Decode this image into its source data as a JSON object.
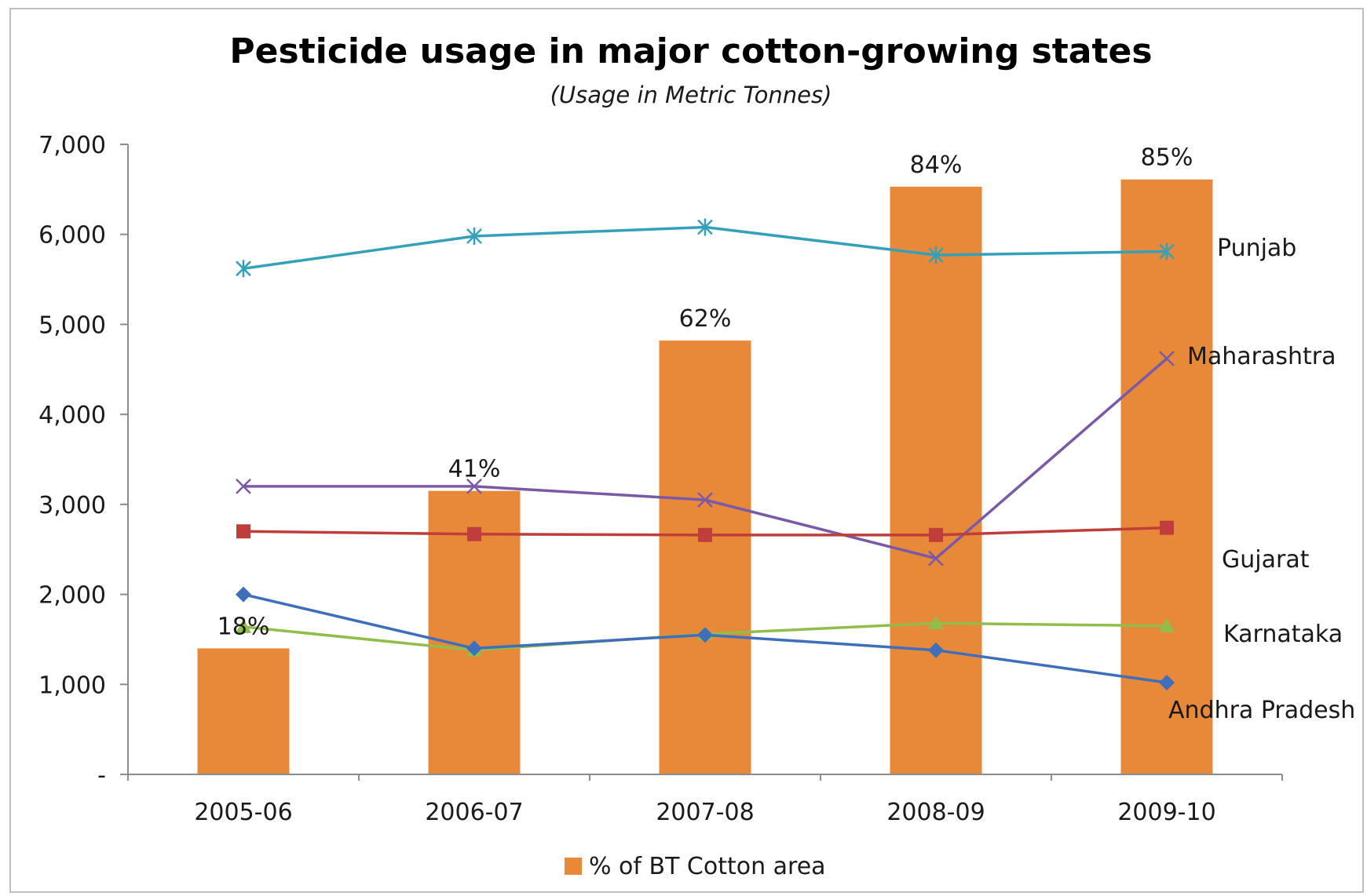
{
  "chart_data": {
    "type": "bar",
    "title": "Pesticide usage in major cotton-growing states",
    "subtitle": "(Usage in Metric Tonnes)",
    "categories": [
      "2005-06",
      "2006-07",
      "2007-08",
      "2008-09",
      "2009-10"
    ],
    "ylim": [
      0,
      7000
    ],
    "yticks": [
      {
        "value": 0,
        "label": "-"
      },
      {
        "value": 1000,
        "label": "1,000"
      },
      {
        "value": 2000,
        "label": "2,000"
      },
      {
        "value": 3000,
        "label": "3,000"
      },
      {
        "value": 4000,
        "label": "4,000"
      },
      {
        "value": 5000,
        "label": "5,000"
      },
      {
        "value": 6000,
        "label": "6,000"
      },
      {
        "value": 7000,
        "label": "7,000"
      }
    ],
    "grid": false,
    "legend": {
      "position": "bottom",
      "entries": [
        {
          "name": "% of BT Cotton area",
          "color": "#e8893a",
          "type": "bar"
        }
      ]
    },
    "bars": {
      "name": "% of BT Cotton area",
      "color": "#e8893a",
      "values": [
        1400,
        3150,
        4820,
        6530,
        6610
      ],
      "data_labels": [
        "18%",
        "41%",
        "62%",
        "84%",
        "85%"
      ]
    },
    "series": [
      {
        "name": "Punjab",
        "color": "#35a1b8",
        "marker": "star",
        "values": [
          5620,
          5980,
          6080,
          5770,
          5810
        ]
      },
      {
        "name": "Maharashtra",
        "color": "#7a5aa6",
        "marker": "x",
        "values": [
          3200,
          3200,
          3050,
          2400,
          4620
        ]
      },
      {
        "name": "Gujarat",
        "color": "#bf3d3a",
        "marker": "square",
        "values": [
          2700,
          2670,
          2660,
          2660,
          2740
        ]
      },
      {
        "name": "Karnataka",
        "color": "#93bd4a",
        "marker": "triangle",
        "values": [
          1640,
          1380,
          1560,
          1680,
          1650
        ]
      },
      {
        "name": "Andhra Pradesh",
        "color": "#3f6fba",
        "marker": "diamond",
        "values": [
          2000,
          1400,
          1550,
          1380,
          1020
        ]
      }
    ]
  }
}
